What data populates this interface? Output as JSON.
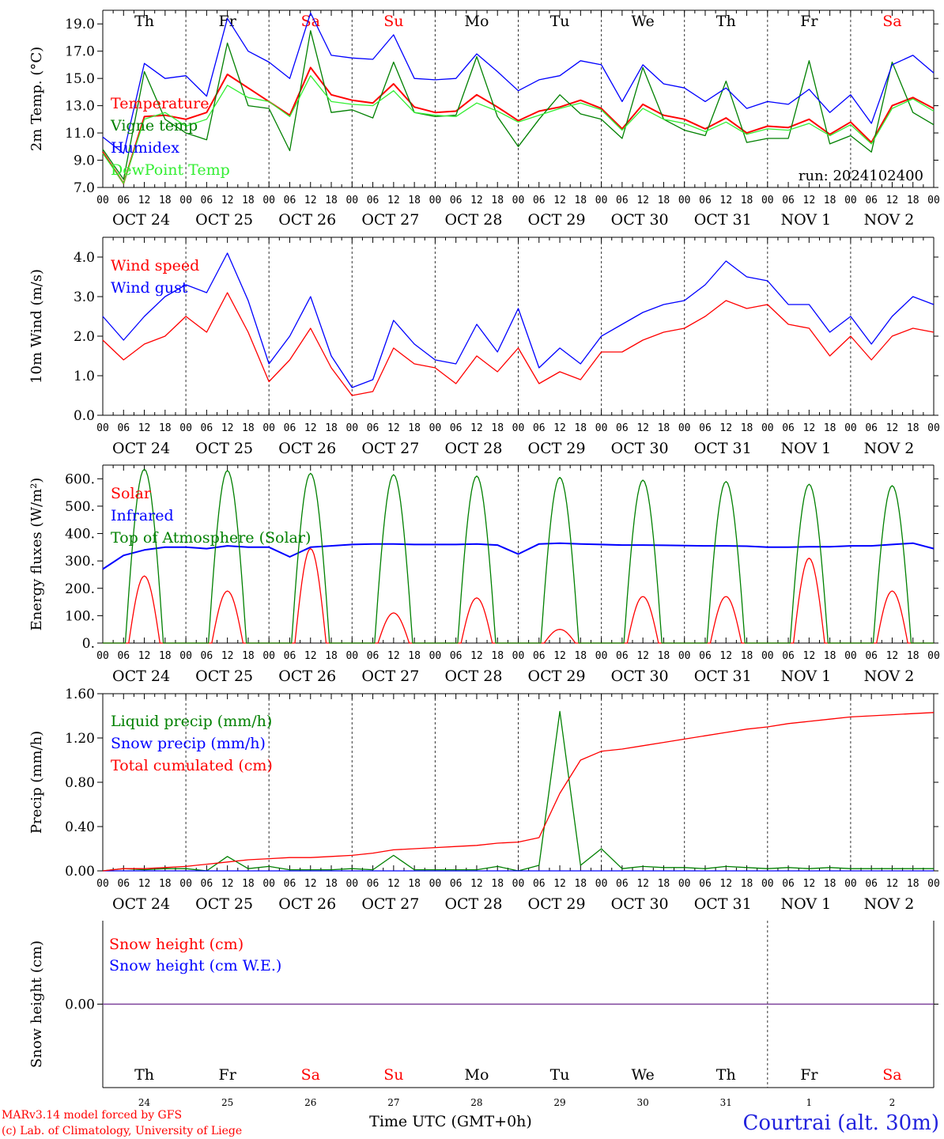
{
  "figure": {
    "run_label": "run: 2024102400",
    "x_axis_title": "Time UTC (GMT+0h)",
    "location": "Courtrai (alt. 30m)",
    "credits": [
      "MARv3.14 model forced by GFS",
      "(c) Lab. of Climatology, University of Liege"
    ]
  },
  "days": {
    "weekday_labels": [
      "Th",
      "Fr",
      "Sa",
      "Su",
      "Mo",
      "Tu",
      "We",
      "Th",
      "Fr",
      "Sa"
    ],
    "weekend_flags": [
      false,
      false,
      true,
      true,
      false,
      false,
      false,
      false,
      false,
      true
    ],
    "date_labels": [
      "OCT 24",
      "OCT 25",
      "OCT 26",
      "OCT 27",
      "OCT 28",
      "OCT 29",
      "OCT 30",
      "OCT 31",
      "NOV  1",
      "NOV  2"
    ],
    "day_numbers": [
      "24",
      "25",
      "26",
      "27",
      "28",
      "29",
      "30",
      "31",
      "1",
      "2"
    ],
    "hour_labels": [
      "00",
      "06",
      "12",
      "18"
    ],
    "final_hour_label": "00"
  },
  "colors": {
    "temperature": "#ff0000",
    "vigne": "#008000",
    "humidex": "#0000ff",
    "dewpoint": "#33ee33",
    "weekend": "#ff0000",
    "location": "#2222dd",
    "credits": "#ff0000",
    "snow_line": "#7a3d99"
  },
  "chart_data": [
    {
      "type": "line",
      "ylabel": "2m Temp. (°C)",
      "ylim": [
        7.0,
        20.0
      ],
      "yticks": [
        "7.0",
        "9.0",
        "11.0",
        "13.0",
        "15.0",
        "17.0",
        "19.0"
      ],
      "x_hours": [
        0,
        6,
        12,
        18,
        24,
        30,
        36,
        42,
        48,
        54,
        60,
        66,
        72,
        78,
        84,
        90,
        96,
        102,
        108,
        114,
        120,
        126,
        132,
        138,
        144,
        150,
        156,
        162,
        168,
        174,
        180,
        186,
        192,
        198,
        204,
        210,
        216,
        222,
        228,
        234,
        240
      ],
      "series": [
        {
          "name": "Temperature",
          "color": "#ff0000",
          "values": [
            9.6,
            7.3,
            12.2,
            12.3,
            12.0,
            12.5,
            15.3,
            14.3,
            13.3,
            12.3,
            15.8,
            13.8,
            13.4,
            13.2,
            14.6,
            12.9,
            12.5,
            12.6,
            13.8,
            12.9,
            11.9,
            12.6,
            12.9,
            13.4,
            12.8,
            11.3,
            13.1,
            12.3,
            12.0,
            11.3,
            12.1,
            11.0,
            11.5,
            11.4,
            12.0,
            10.9,
            11.8,
            10.3,
            13.0,
            13.6,
            12.8
          ]
        },
        {
          "name": "Vigne temp",
          "color": "#008000",
          "values": [
            9.8,
            7.6,
            15.5,
            12.0,
            11.0,
            10.5,
            17.6,
            13.0,
            12.8,
            9.7,
            18.5,
            12.5,
            12.7,
            12.1,
            16.2,
            12.5,
            12.2,
            12.3,
            16.6,
            12.2,
            10.0,
            12.0,
            13.8,
            12.4,
            12.0,
            10.6,
            15.8,
            12.0,
            11.2,
            10.8,
            14.8,
            10.3,
            10.6,
            10.6,
            16.3,
            10.2,
            10.8,
            9.6,
            16.2,
            12.5,
            11.6
          ]
        },
        {
          "name": "Humidex",
          "color": "#0000ff",
          "values": [
            10.7,
            9.5,
            16.1,
            15.0,
            15.2,
            13.7,
            19.4,
            17.0,
            16.2,
            15.0,
            19.8,
            16.7,
            16.5,
            16.4,
            18.2,
            15.0,
            14.9,
            15.0,
            16.8,
            15.5,
            14.1,
            14.9,
            15.2,
            16.3,
            16.0,
            13.3,
            16.0,
            14.6,
            14.3,
            13.3,
            14.3,
            12.8,
            13.3,
            13.1,
            14.2,
            12.5,
            13.8,
            11.7,
            16.0,
            16.7,
            15.4
          ]
        },
        {
          "name": "DewPoint Temp",
          "color": "#33ee33",
          "values": [
            9.5,
            7.3,
            12.0,
            12.5,
            11.5,
            12.0,
            14.5,
            13.6,
            13.3,
            12.2,
            15.2,
            13.3,
            13.1,
            13.0,
            14.1,
            12.5,
            12.3,
            12.2,
            13.2,
            12.6,
            11.8,
            12.3,
            12.8,
            13.2,
            12.7,
            11.2,
            12.8,
            12.0,
            11.7,
            11.1,
            11.8,
            10.9,
            11.3,
            11.2,
            11.7,
            10.8,
            11.6,
            10.2,
            12.8,
            13.5,
            12.6
          ]
        }
      ]
    },
    {
      "type": "line",
      "ylabel": "10m Wind (m/s)",
      "ylim": [
        0.0,
        4.5
      ],
      "yticks": [
        "0.0",
        "1.0",
        "2.0",
        "3.0",
        "4.0"
      ],
      "x_hours": [
        0,
        6,
        12,
        18,
        24,
        30,
        36,
        42,
        48,
        54,
        60,
        66,
        72,
        78,
        84,
        90,
        96,
        102,
        108,
        114,
        120,
        126,
        132,
        138,
        144,
        150,
        156,
        162,
        168,
        174,
        180,
        186,
        192,
        198,
        204,
        210,
        216,
        222,
        228,
        234,
        240
      ],
      "series": [
        {
          "name": "Wind speed",
          "color": "#ff0000",
          "values": [
            1.9,
            1.4,
            1.8,
            2.0,
            2.5,
            2.1,
            3.1,
            2.1,
            0.85,
            1.4,
            2.2,
            1.2,
            0.5,
            0.6,
            1.7,
            1.3,
            1.2,
            0.8,
            1.5,
            1.1,
            1.7,
            0.8,
            1.1,
            0.9,
            1.6,
            1.6,
            1.9,
            2.1,
            2.2,
            2.5,
            2.9,
            2.7,
            2.8,
            2.3,
            2.2,
            1.5,
            2.0,
            1.4,
            2.0,
            2.2,
            2.1
          ]
        },
        {
          "name": "Wind gust",
          "color": "#0000ff",
          "values": [
            2.5,
            1.9,
            2.5,
            3.0,
            3.3,
            3.1,
            4.1,
            2.9,
            1.3,
            2.0,
            3.0,
            1.5,
            0.7,
            0.9,
            2.4,
            1.8,
            1.4,
            1.3,
            2.3,
            1.6,
            2.7,
            1.2,
            1.7,
            1.3,
            2.0,
            2.3,
            2.6,
            2.8,
            2.9,
            3.3,
            3.9,
            3.5,
            3.4,
            2.8,
            2.8,
            2.1,
            2.5,
            1.8,
            2.5,
            3.0,
            2.8
          ]
        }
      ]
    },
    {
      "type": "line",
      "ylabel": "Energy fluxes (W/m²)",
      "ylim": [
        0,
        650
      ],
      "yticks": [
        "0.",
        "100.",
        "200.",
        "300.",
        "400.",
        "500.",
        "600."
      ],
      "x_hours": [
        0,
        6,
        12,
        18,
        24,
        30,
        36,
        42,
        48,
        54,
        60,
        66,
        72,
        78,
        84,
        90,
        96,
        102,
        108,
        114,
        120,
        126,
        132,
        138,
        144,
        150,
        156,
        162,
        168,
        174,
        180,
        186,
        192,
        198,
        204,
        210,
        216,
        222,
        228,
        234,
        240
      ],
      "solar_peaks": [
        245,
        190,
        345,
        110,
        165,
        50,
        170,
        170,
        310,
        190
      ],
      "toa_peaks": [
        635,
        630,
        620,
        615,
        610,
        605,
        595,
        590,
        580,
        575
      ],
      "series": [
        {
          "name": "Solar",
          "color": "#ff0000",
          "values": []
        },
        {
          "name": "Infrared",
          "color": "#0000ff",
          "values": [
            270,
            320,
            340,
            350,
            350,
            345,
            355,
            350,
            350,
            315,
            350,
            355,
            360,
            362,
            362,
            360,
            360,
            360,
            362,
            358,
            325,
            362,
            365,
            362,
            360,
            358,
            358,
            357,
            356,
            355,
            355,
            354,
            350,
            350,
            352,
            352,
            355,
            355,
            360,
            365,
            345
          ]
        },
        {
          "name": "Top of Atmosphere (Solar)",
          "color": "#008000",
          "values": []
        }
      ]
    },
    {
      "type": "line",
      "ylabel": "Precip (mm/h)",
      "ylim": [
        0.0,
        1.6
      ],
      "yticks": [
        "0.00",
        "0.40",
        "0.80",
        "1.20",
        "1.60"
      ],
      "x_hours": [
        0,
        6,
        12,
        18,
        24,
        30,
        36,
        42,
        48,
        54,
        60,
        66,
        72,
        78,
        84,
        90,
        96,
        102,
        108,
        114,
        120,
        126,
        132,
        138,
        144,
        150,
        156,
        162,
        168,
        174,
        180,
        186,
        192,
        198,
        204,
        210,
        216,
        222,
        228,
        234,
        240
      ],
      "series": [
        {
          "name": "Liquid precip (mm/h)",
          "color": "#008000",
          "values": [
            0.0,
            0.02,
            0.01,
            0.02,
            0.02,
            0.0,
            0.13,
            0.02,
            0.04,
            0.01,
            0.01,
            0.01,
            0.02,
            0.01,
            0.14,
            0.01,
            0.01,
            0.01,
            0.01,
            0.04,
            0.0,
            0.05,
            1.44,
            0.05,
            0.2,
            0.02,
            0.04,
            0.03,
            0.03,
            0.02,
            0.04,
            0.03,
            0.02,
            0.03,
            0.02,
            0.03,
            0.02,
            0.02,
            0.02,
            0.02,
            0.02
          ]
        },
        {
          "name": "Snow precip (mm/h)",
          "color": "#0000ff",
          "values": [
            0,
            0,
            0,
            0,
            0,
            0,
            0,
            0,
            0,
            0,
            0,
            0,
            0,
            0,
            0,
            0,
            0,
            0,
            0,
            0,
            0,
            0,
            0,
            0,
            0,
            0,
            0,
            0,
            0,
            0,
            0,
            0,
            0,
            0,
            0,
            0,
            0,
            0,
            0,
            0,
            0
          ]
        },
        {
          "name": "Total cumulated (cm)",
          "color": "#ff0000",
          "values": [
            0.0,
            0.02,
            0.02,
            0.03,
            0.04,
            0.06,
            0.08,
            0.1,
            0.11,
            0.12,
            0.12,
            0.13,
            0.14,
            0.16,
            0.19,
            0.2,
            0.21,
            0.22,
            0.23,
            0.25,
            0.26,
            0.3,
            0.7,
            1.0,
            1.08,
            1.1,
            1.13,
            1.16,
            1.19,
            1.22,
            1.25,
            1.28,
            1.3,
            1.33,
            1.35,
            1.37,
            1.39,
            1.4,
            1.41,
            1.42,
            1.43
          ]
        }
      ]
    },
    {
      "type": "line",
      "ylabel": "Snow height (cm)",
      "ylim": [
        -1.0,
        1.0
      ],
      "yticks": [
        "0.00"
      ],
      "x_hours": [
        0,
        240
      ],
      "series": [
        {
          "name": "Snow height (cm)",
          "color": "#ff0000",
          "values": [
            0.0,
            0.0
          ]
        },
        {
          "name": "Snow height (cm W.E.)",
          "color": "#0000ff",
          "values": [
            0.0,
            0.0
          ]
        }
      ]
    }
  ]
}
